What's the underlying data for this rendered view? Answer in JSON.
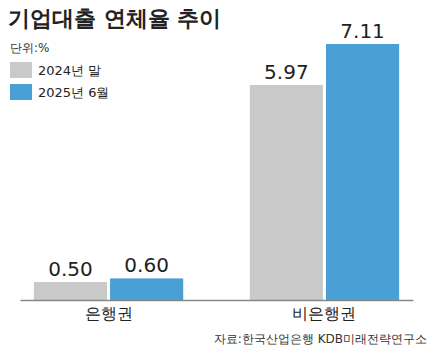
{
  "chart_data": {
    "type": "bar",
    "title": "기업대출 연체율 추이",
    "subtitle": "단위:%",
    "source": "자료:한국산업은행 KDB미래전략연구소",
    "categories": [
      "은행권",
      "비은행권"
    ],
    "series": [
      {
        "name": "2024년 말",
        "color": "#c9c9c9",
        "values": [
          0.5,
          5.97
        ],
        "value_labels": [
          "0.50",
          "5.97"
        ]
      },
      {
        "name": "2025년 6월",
        "color": "#4a9fd4",
        "values": [
          0.6,
          7.11
        ],
        "value_labels": [
          "0.60",
          "7.11"
        ]
      }
    ],
    "ylim": [
      0,
      7.11
    ],
    "grid": false,
    "legend": "top-left",
    "data_labels": true,
    "tick_labels": "x"
  }
}
